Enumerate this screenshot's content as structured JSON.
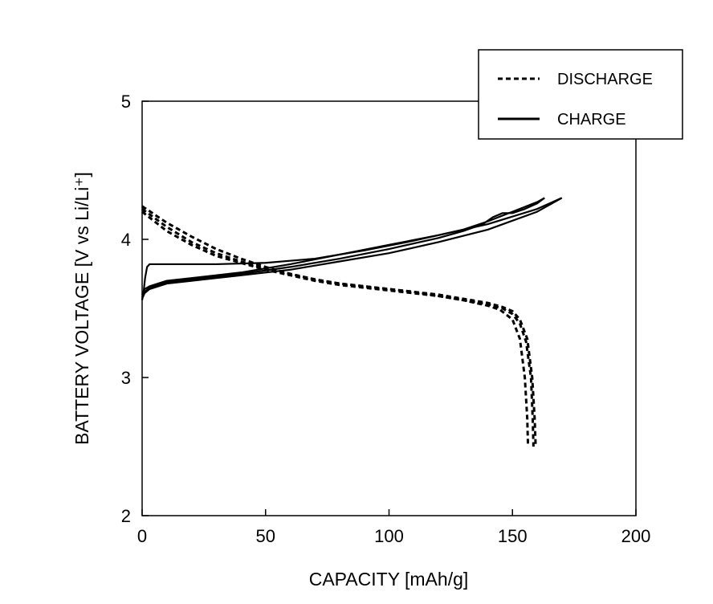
{
  "chart_data": {
    "type": "line",
    "title": "",
    "xlabel": "CAPACITY [mAh/g]",
    "ylabel": "BATTERY VOLTAGE [V vs Li/Li⁺]",
    "xlim": [
      0,
      200
    ],
    "ylim": [
      2,
      5
    ],
    "xticks": [
      0,
      50,
      100,
      150,
      200
    ],
    "yticks": [
      2,
      3,
      4,
      5
    ],
    "grid": false,
    "legend_position": "top-right",
    "legend": [
      {
        "label": "DISCHARGE",
        "style": "dashed"
      },
      {
        "label": "CHARGE",
        "style": "solid"
      }
    ],
    "series": [
      {
        "name": "DISCHARGE",
        "style": "dashed",
        "points": [
          [
            0,
            4.24
          ],
          [
            10,
            4.12
          ],
          [
            20,
            4.02
          ],
          [
            30,
            3.93
          ],
          [
            40,
            3.86
          ],
          [
            50,
            3.8
          ],
          [
            60,
            3.75
          ],
          [
            70,
            3.71
          ],
          [
            80,
            3.68
          ],
          [
            90,
            3.66
          ],
          [
            100,
            3.64
          ],
          [
            110,
            3.62
          ],
          [
            120,
            3.59
          ],
          [
            130,
            3.56
          ],
          [
            140,
            3.52
          ],
          [
            145,
            3.49
          ],
          [
            150,
            3.42
          ],
          [
            153,
            3.28
          ],
          [
            155,
            3.0
          ],
          [
            156,
            2.7
          ],
          [
            156.3,
            2.5
          ]
        ]
      },
      {
        "name": "DISCHARGE",
        "style": "dashed",
        "points": [
          [
            0,
            4.22
          ],
          [
            10,
            4.09
          ],
          [
            20,
            3.98
          ],
          [
            30,
            3.9
          ],
          [
            40,
            3.84
          ],
          [
            50,
            3.79
          ],
          [
            60,
            3.75
          ],
          [
            70,
            3.71
          ],
          [
            80,
            3.68
          ],
          [
            90,
            3.66
          ],
          [
            100,
            3.64
          ],
          [
            110,
            3.62
          ],
          [
            120,
            3.6
          ],
          [
            130,
            3.57
          ],
          [
            140,
            3.54
          ],
          [
            146,
            3.51
          ],
          [
            150,
            3.48
          ],
          [
            153,
            3.42
          ],
          [
            156,
            3.28
          ],
          [
            158,
            3.0
          ],
          [
            159,
            2.7
          ],
          [
            159.4,
            2.5
          ]
        ]
      },
      {
        "name": "DISCHARGE",
        "style": "dashed",
        "points": [
          [
            0,
            4.2
          ],
          [
            10,
            4.06
          ],
          [
            20,
            3.96
          ],
          [
            30,
            3.88
          ],
          [
            40,
            3.83
          ],
          [
            50,
            3.78
          ],
          [
            60,
            3.74
          ],
          [
            70,
            3.7
          ],
          [
            80,
            3.67
          ],
          [
            90,
            3.65
          ],
          [
            100,
            3.63
          ],
          [
            110,
            3.61
          ],
          [
            120,
            3.59
          ],
          [
            130,
            3.56
          ],
          [
            140,
            3.53
          ],
          [
            146,
            3.5
          ],
          [
            150,
            3.46
          ],
          [
            153,
            3.39
          ],
          [
            155.5,
            3.26
          ],
          [
            157.5,
            3.0
          ],
          [
            158.2,
            2.7
          ],
          [
            158.5,
            2.5
          ]
        ]
      },
      {
        "name": "CHARGE",
        "style": "solid",
        "points": [
          [
            0,
            3.56
          ],
          [
            0.6,
            3.62
          ],
          [
            1.2,
            3.72
          ],
          [
            2,
            3.8
          ],
          [
            3,
            3.82
          ],
          [
            10,
            3.82
          ],
          [
            30,
            3.82
          ],
          [
            50,
            3.83
          ],
          [
            70,
            3.86
          ],
          [
            90,
            3.92
          ],
          [
            110,
            3.99
          ],
          [
            130,
            4.07
          ],
          [
            140,
            4.13
          ],
          [
            150,
            4.2
          ],
          [
            160,
            4.27
          ],
          [
            163,
            4.3
          ]
        ]
      },
      {
        "name": "CHARGE",
        "style": "solid",
        "points": [
          [
            0,
            3.58
          ],
          [
            1,
            3.62
          ],
          [
            3,
            3.65
          ],
          [
            10,
            3.69
          ],
          [
            20,
            3.71
          ],
          [
            40,
            3.75
          ],
          [
            60,
            3.8
          ],
          [
            80,
            3.86
          ],
          [
            100,
            3.93
          ],
          [
            120,
            4.01
          ],
          [
            130,
            4.06
          ],
          [
            138,
            4.11
          ],
          [
            142,
            4.16
          ],
          [
            146,
            4.19
          ],
          [
            150,
            4.19
          ],
          [
            155,
            4.22
          ],
          [
            160,
            4.26
          ],
          [
            163,
            4.3
          ]
        ]
      },
      {
        "name": "CHARGE",
        "style": "solid",
        "points": [
          [
            0,
            3.57
          ],
          [
            1,
            3.61
          ],
          [
            3,
            3.64
          ],
          [
            10,
            3.68
          ],
          [
            20,
            3.7
          ],
          [
            40,
            3.74
          ],
          [
            60,
            3.78
          ],
          [
            80,
            3.84
          ],
          [
            100,
            3.9
          ],
          [
            120,
            3.98
          ],
          [
            140,
            4.07
          ],
          [
            160,
            4.2
          ],
          [
            170,
            4.3
          ]
        ]
      },
      {
        "name": "CHARGE",
        "style": "solid",
        "points": [
          [
            0,
            3.6
          ],
          [
            1,
            3.64
          ],
          [
            3,
            3.66
          ],
          [
            10,
            3.7
          ],
          [
            20,
            3.72
          ],
          [
            40,
            3.76
          ],
          [
            60,
            3.82
          ],
          [
            80,
            3.89
          ],
          [
            100,
            3.96
          ],
          [
            120,
            4.03
          ],
          [
            140,
            4.11
          ],
          [
            160,
            4.22
          ],
          [
            170,
            4.3
          ]
        ]
      }
    ]
  }
}
